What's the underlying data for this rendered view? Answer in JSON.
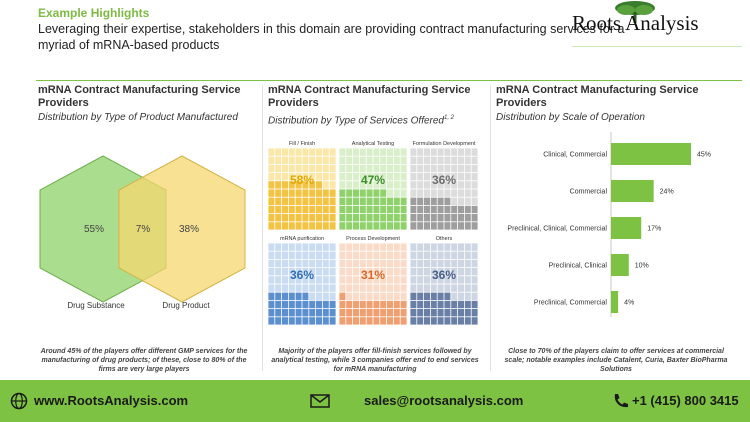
{
  "header": {
    "section": "Example Highlights",
    "lead": "Leveraging their expertise, stakeholders in this domain are providing contract manufacturing services for a myriad of mRNA-based products",
    "logo": "Roots Analysis"
  },
  "panels": [
    {
      "title": "mRNA Contract Manufacturing Service Providers",
      "subtitle": "Distribution by Type of Product Manufactured"
    },
    {
      "title": "mRNA Contract Manufacturing Service Providers",
      "subtitle": "Distribution by Type of Services Offered",
      "subtitle_sup": "1, 2"
    },
    {
      "title": "mRNA Contract Manufacturing Service Providers",
      "subtitle": "Distribution by Scale of Operation"
    }
  ],
  "notes": [
    "Around 45% of the players offer different GMP services for the manufacturing of drug products; of these, close to 80% of the firms are very large players",
    "Majority of the players offer fill-finish services followed by analytical testing, while 3 companies offer end to end services for mRNA manufacturing",
    "Close to 70% of the players claim to offer services at commercial scale; notable examples include Catalent, Curia, Baxter BioPharma Solutions"
  ],
  "footer": {
    "website": "www.RootsAnalysis.com",
    "email": "sales@rootsanalysis.com",
    "phone": "+1 (415) 800 3415"
  },
  "colors": {
    "accent": "#7dc242",
    "left_hex": "#8fd16a",
    "right_hex": "#f5d76e"
  },
  "chart_data": [
    {
      "type": "venn",
      "sets": [
        {
          "label": "Drug Substance",
          "only": "55%"
        },
        {
          "label": "Drug Product",
          "only": "38%"
        }
      ],
      "overlap": "7%"
    },
    {
      "type": "waffle",
      "items": [
        {
          "label": "Fill / Finish",
          "value": 58,
          "display": "58%",
          "color": "#f3c343",
          "light": "#fbe7a8",
          "text": "#e0a800"
        },
        {
          "label": "Analytical Testing",
          "value": 47,
          "display": "47%",
          "color": "#8fd16a",
          "light": "#d8efc9",
          "text": "#3b8f2a"
        },
        {
          "label": "Formulation Development",
          "value": 36,
          "display": "36%",
          "color": "#9e9e9e",
          "light": "#dcdcdc",
          "text": "#6e6e6e"
        },
        {
          "label": "mRNA purification",
          "value": 36,
          "display": "36%",
          "color": "#5b8fcf",
          "light": "#c9dcf2",
          "text": "#2f6fb5"
        },
        {
          "label": "Process Development",
          "value": 31,
          "display": "31%",
          "color": "#f0a070",
          "light": "#fadbc7",
          "text": "#d86a28"
        },
        {
          "label": "Others",
          "value": 36,
          "display": "36%",
          "color": "#6a7fa6",
          "light": "#ced6e4",
          "text": "#4a5f88"
        }
      ]
    },
    {
      "type": "bar",
      "orientation": "horizontal",
      "categories": [
        "Clinical, Commercial",
        "Commercial",
        "Preclinical, Clinical, Commercial",
        "Preclinical, Clinical",
        "Preclinical, Commercial"
      ],
      "values": [
        45,
        24,
        17,
        10,
        4
      ],
      "labels": [
        "45%",
        "24%",
        "17%",
        "10%",
        "4%"
      ],
      "color": "#7dc242"
    }
  ]
}
